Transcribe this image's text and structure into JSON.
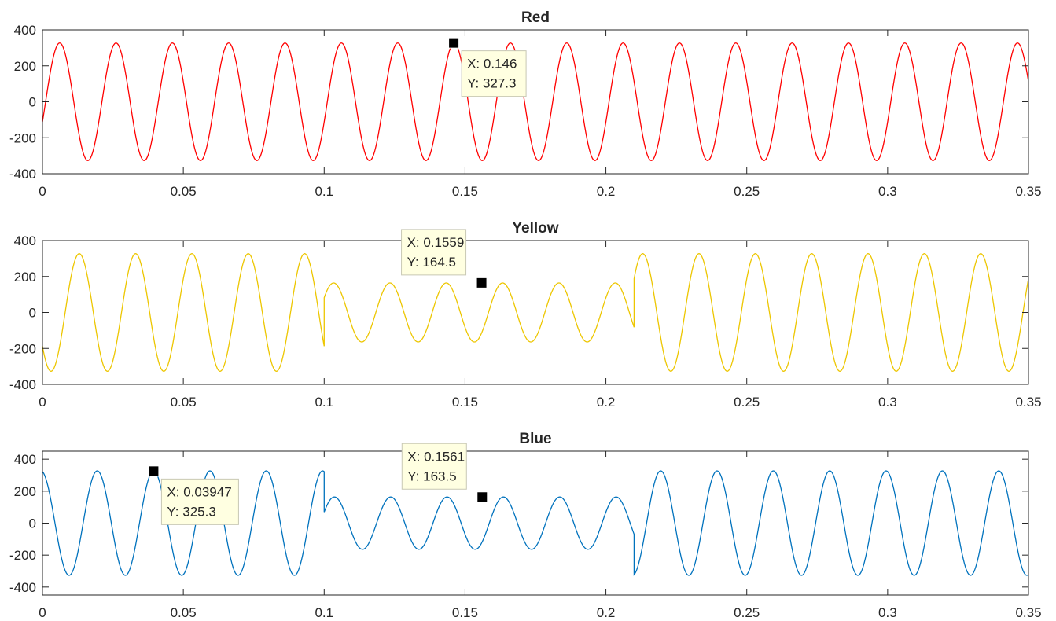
{
  "figure": {
    "background": "#ffffff",
    "axis_color": "#262626"
  },
  "chart_data": [
    {
      "type": "line",
      "title": "Red",
      "color": "#ff0000",
      "xlim": [
        0,
        0.35
      ],
      "ylim": [
        -400,
        400
      ],
      "xticks": [
        0,
        0.05,
        0.1,
        0.15,
        0.2,
        0.25,
        0.3,
        0.35
      ],
      "xtick_labels": [
        "0",
        "0.05",
        "0.1",
        "0.15",
        "0.2",
        "0.25",
        "0.3",
        "0.35"
      ],
      "yticks": [
        -400,
        -200,
        0,
        200,
        400
      ],
      "ytick_labels": [
        "-400",
        "-200",
        "0",
        "200",
        "400"
      ],
      "series": [
        {
          "frequency_hz": 50,
          "segments": [
            {
              "t_start": 0,
              "t_end": 0.35,
              "amplitude": 327,
              "phase_deg": -20
            }
          ]
        }
      ],
      "datatips": [
        {
          "x": 0.146,
          "y": 327.3,
          "x_label": "X: 0.146",
          "y_label": "Y: 327.3",
          "box_side": "right"
        }
      ]
    },
    {
      "type": "line",
      "title": "Yellow",
      "color": "#edc600",
      "xlim": [
        0,
        0.35
      ],
      "ylim": [
        -400,
        400
      ],
      "xticks": [
        0,
        0.05,
        0.1,
        0.15,
        0.2,
        0.25,
        0.3,
        0.35
      ],
      "xtick_labels": [
        "0",
        "0.05",
        "0.1",
        "0.15",
        "0.2",
        "0.25",
        "0.3",
        "0.35"
      ],
      "yticks": [
        -400,
        -200,
        0,
        200,
        400
      ],
      "ytick_labels": [
        "-400",
        "-200",
        "0",
        "200",
        "400"
      ],
      "series": [
        {
          "frequency_hz": 50,
          "segments": [
            {
              "t_start": 0,
              "t_end": 0.1,
              "amplitude": 327,
              "phase_deg": -145
            },
            {
              "t_start": 0.1,
              "t_end": 0.21,
              "amplitude": 164,
              "phase_deg": 30
            },
            {
              "t_start": 0.21,
              "t_end": 0.35,
              "amplitude": 327,
              "phase_deg": -145
            }
          ]
        }
      ],
      "datatips": [
        {
          "x": 0.1559,
          "y": 164.5,
          "x_label": "X: 0.1559",
          "y_label": "Y: 164.5",
          "box_side": "left-above"
        }
      ]
    },
    {
      "type": "line",
      "title": "Blue",
      "color": "#0072bd",
      "xlim": [
        0,
        0.35
      ],
      "ylim": [
        -450,
        450
      ],
      "xticks": [
        0,
        0.05,
        0.1,
        0.15,
        0.2,
        0.25,
        0.3,
        0.35
      ],
      "xtick_labels": [
        "0",
        "0.05",
        "0.1",
        "0.15",
        "0.2",
        "0.25",
        "0.3",
        "0.35"
      ],
      "yticks": [
        -400,
        -200,
        0,
        200,
        400
      ],
      "ytick_labels": [
        "-400",
        "-200",
        "0",
        "200",
        "400"
      ],
      "series": [
        {
          "frequency_hz": 50,
          "segments": [
            {
              "t_start": 0,
              "t_end": 0.1,
              "amplitude": 327,
              "phase_deg": 100
            },
            {
              "t_start": 0.1,
              "t_end": 0.21,
              "amplitude": 164,
              "phase_deg": 25
            },
            {
              "t_start": 0.21,
              "t_end": 0.35,
              "amplitude": 327,
              "phase_deg": 100
            }
          ]
        }
      ],
      "datatips": [
        {
          "x": 0.03947,
          "y": 325.3,
          "x_label": "X: 0.03947",
          "y_label": "Y: 325.3",
          "box_side": "right"
        },
        {
          "x": 0.1561,
          "y": 163.5,
          "x_label": "X: 0.1561",
          "y_label": "Y: 163.5",
          "box_side": "left-above"
        }
      ]
    }
  ]
}
